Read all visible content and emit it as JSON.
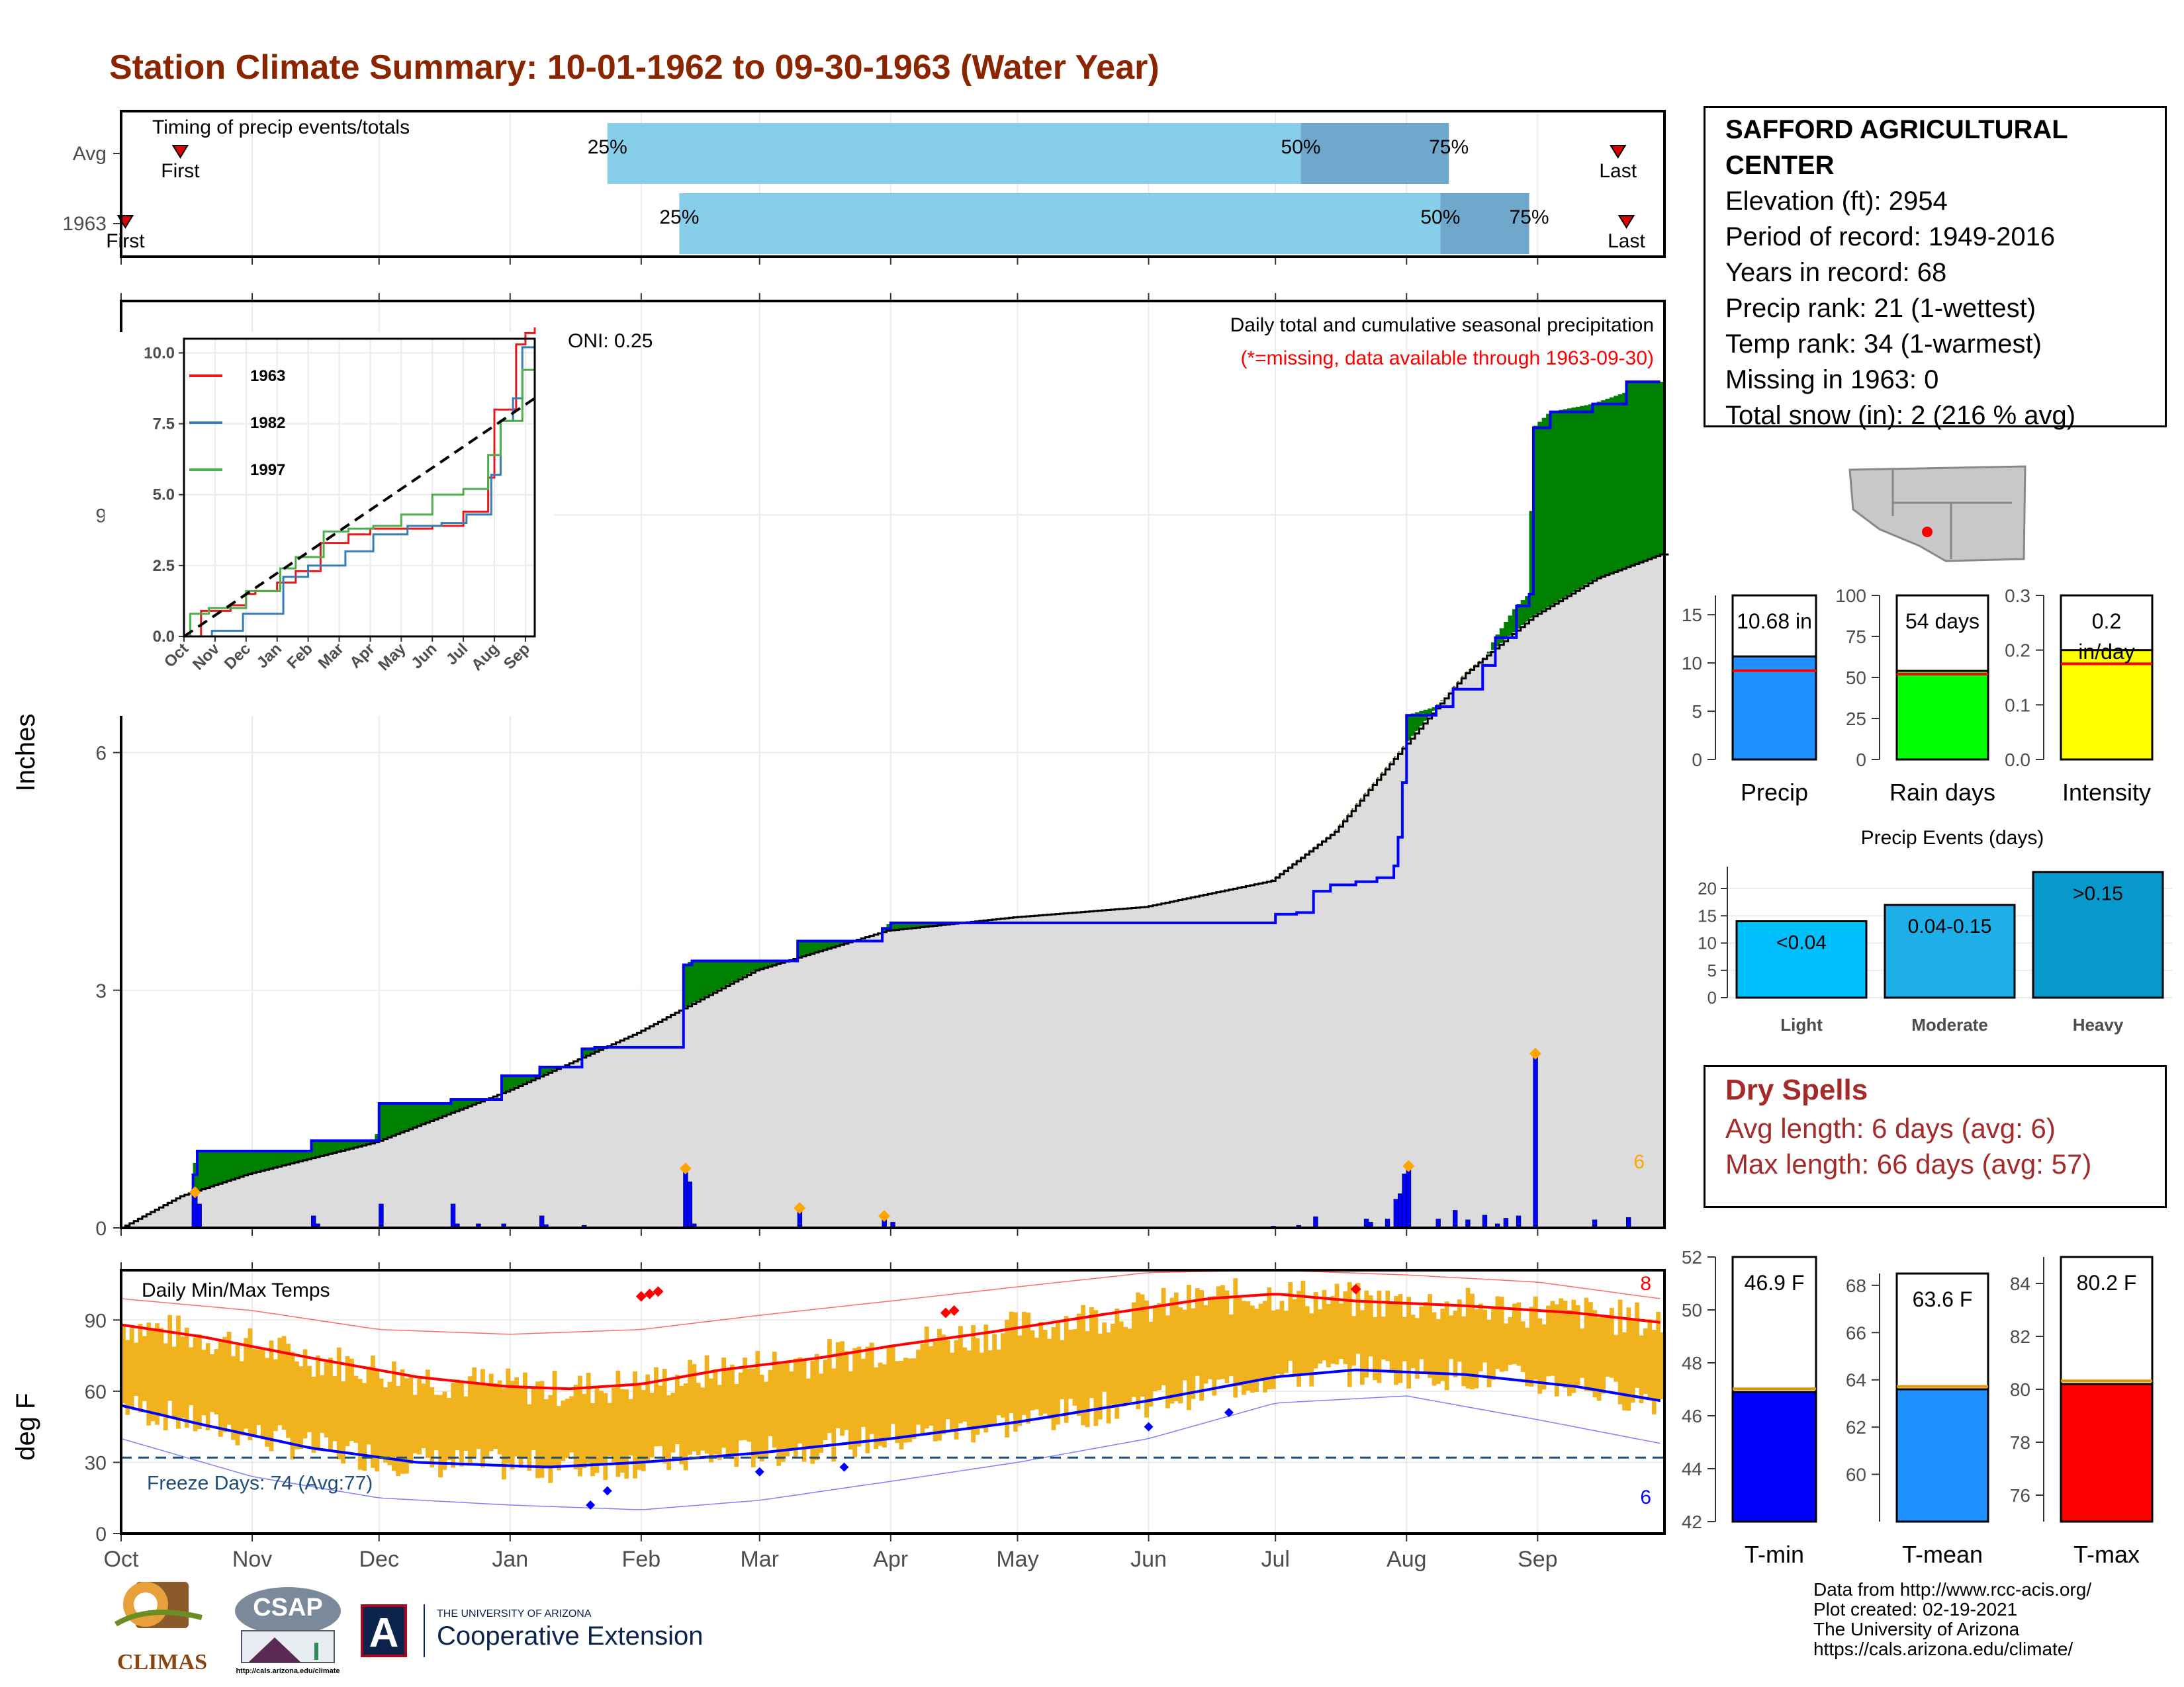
{
  "title": "Station Climate Summary: 10-01-1962 to 09-30-1963 (Water Year)",
  "station": {
    "name_line1": "SAFFORD AGRICULTURAL",
    "name_line2": "CENTER",
    "lines": [
      "Elevation (ft): 2954",
      "Period of record: 1949-2016",
      "Years in record: 68",
      "Precip rank: 21 (1-wettest)",
      "Temp rank: 34 (1-warmest)",
      "Missing in 1963: 0",
      "Total snow (in): 2 (216 % avg)"
    ]
  },
  "dry_spells": {
    "title": "Dry Spells",
    "avg": "Avg length: 6 days (avg: 6)",
    "max": "Max length: 66 days (avg: 57)"
  },
  "credits": [
    "Data from http://www.rcc-acis.org/",
    "Plot created: 02-19-2021",
    "The University of Arizona",
    "https://cals.arizona.edu/climate/"
  ],
  "logos": {
    "climas": "CLIMAS",
    "csap": "CSAP",
    "csap_url": "http://cals.arizona.edu/climate",
    "ua_letter": "A",
    "ua_small": "THE UNIVERSITY OF ARIZONA",
    "ua_big": "Cooperative Extension"
  },
  "colors": {
    "title": "#8b2500",
    "precip_fill": "#dcdcdc",
    "cum_line": "#0000ff",
    "above_avg": "#008000",
    "below_avg": "#7f5000",
    "temp_bar": "#f0b31e",
    "tmax_line": "#ff0000",
    "tmin_line": "#0000ff",
    "timing_light": "#87ceeb",
    "timing_dark": "#6fa8cc",
    "dry_spell": "#a52a2a"
  },
  "months": [
    "Oct",
    "Nov",
    "Dec",
    "Jan",
    "Feb",
    "Mar",
    "Apr",
    "May",
    "Jun",
    "Jul",
    "Aug",
    "Sep"
  ],
  "chart_data": [
    {
      "id": "timing",
      "type": "bar",
      "title": "Timing of precip events/totals",
      "rows": [
        {
          "label": "Avg",
          "first": "Oct 15",
          "p25": "Jan 24",
          "p50": "Jul 7",
          "p75": "Aug 11",
          "last": "Sep 20",
          "first_label": "First",
          "last_label": "Last"
        },
        {
          "label": "1963",
          "first": "Oct 2",
          "p25": "Feb 10",
          "p50": "Aug 9",
          "p75": "Aug 30",
          "last": "Sep 22",
          "first_label": "First",
          "last_label": "Last"
        }
      ],
      "pct_labels": [
        "25%",
        "50%",
        "75%"
      ]
    },
    {
      "id": "precip",
      "type": "area",
      "title": "Daily total and cumulative seasonal precipitation",
      "subtitle": "(*=missing, data available through 1963-09-30)",
      "annotation": "ONI: 0.25",
      "ylabel": "Inches",
      "ylim": [
        0,
        11.7
      ],
      "yticks": [
        0,
        3,
        6,
        9
      ],
      "events_count": "6",
      "cumulative_1963": [
        [
          "Oct 1",
          0
        ],
        [
          "Oct 18",
          0.0
        ],
        [
          "Oct 18",
          0.67
        ],
        [
          "Oct 19",
          0.97
        ],
        [
          "Nov 15",
          0.97
        ],
        [
          "Nov 15",
          1.1
        ],
        [
          "Nov 30",
          1.1
        ],
        [
          "Dec 1",
          1.27
        ],
        [
          "Dec 1",
          1.57
        ],
        [
          "Dec 18",
          1.57
        ],
        [
          "Dec 18",
          1.62
        ],
        [
          "Dec 30",
          1.62
        ],
        [
          "Dec 30",
          1.92
        ],
        [
          "Jan 8",
          1.92
        ],
        [
          "Jan 8",
          2.03
        ],
        [
          "Jan 17",
          2.03
        ],
        [
          "Jan 18",
          2.26
        ],
        [
          "Jan 21",
          2.28
        ],
        [
          "Feb 11",
          2.28
        ],
        [
          "Feb 11",
          3.32
        ],
        [
          "Feb 13",
          3.37
        ],
        [
          "Mar 10",
          3.37
        ],
        [
          "Mar 10",
          3.62
        ],
        [
          "Mar 30",
          3.62
        ],
        [
          "Mar 30",
          3.78
        ],
        [
          "Apr 1",
          3.85
        ],
        [
          "Jun 30",
          3.85
        ],
        [
          "Jul 1",
          3.96
        ],
        [
          "Jul 6",
          3.98
        ],
        [
          "Jul 10",
          4.25
        ],
        [
          "Jul 14",
          4.33
        ],
        [
          "Jul 20",
          4.37
        ],
        [
          "Jul 25",
          4.42
        ],
        [
          "Jul 29",
          4.57
        ],
        [
          "Jul 30",
          4.93
        ],
        [
          "Jul 31",
          5.62
        ],
        [
          "Aug 1",
          6.47
        ],
        [
          "Aug 8",
          6.58
        ],
        [
          "Aug 12",
          6.8
        ],
        [
          "Aug 19",
          7.1
        ],
        [
          "Aug 22",
          7.45
        ],
        [
          "Aug 27",
          7.85
        ],
        [
          "Aug 30",
          8.0
        ],
        [
          "Aug 31",
          10.1
        ],
        [
          "Sep 4",
          10.3
        ],
        [
          "Sep 14",
          10.4
        ],
        [
          "Sep 22",
          10.55
        ],
        [
          "Sep 22",
          10.68
        ],
        [
          "Sep 30",
          10.68
        ]
      ],
      "average": [
        [
          "Oct 1",
          0
        ],
        [
          "Oct 15",
          0.4
        ],
        [
          "Oct 31",
          0.68
        ],
        [
          "Nov 30",
          1.08
        ],
        [
          "Dec 31",
          1.72
        ],
        [
          "Jan 31",
          2.46
        ],
        [
          "Feb 28",
          3.25
        ],
        [
          "Mar 31",
          3.75
        ],
        [
          "Apr 30",
          3.92
        ],
        [
          "May 31",
          4.05
        ],
        [
          "Jun 30",
          4.38
        ],
        [
          "Jul 15",
          5.0
        ],
        [
          "Jul 31",
          6.05
        ],
        [
          "Aug 15",
          7.0
        ],
        [
          "Aug 31",
          7.72
        ],
        [
          "Sep 15",
          8.2
        ],
        [
          "Sep 30",
          8.5
        ]
      ],
      "daily_bars": [
        [
          "Oct 18",
          0.45
        ],
        [
          "Oct 19",
          0.3
        ],
        [
          "Nov 15",
          0.15
        ],
        [
          "Nov 16",
          0.05
        ],
        [
          "Dec 1",
          0.3
        ],
        [
          "Dec 18",
          0.3
        ],
        [
          "Dec 19",
          0.05
        ],
        [
          "Dec 24",
          0.05
        ],
        [
          "Dec 30",
          0.05
        ],
        [
          "Jan 8",
          0.15
        ],
        [
          "Jan 9",
          0.04
        ],
        [
          "Jan 18",
          0.03
        ],
        [
          "Feb 11",
          0.75
        ],
        [
          "Feb 12",
          0.58
        ],
        [
          "Feb 13",
          0.05
        ],
        [
          "Mar 10",
          0.25
        ],
        [
          "Mar 30",
          0.15
        ],
        [
          "Apr 1",
          0.07
        ],
        [
          "Jun 30",
          0.02
        ],
        [
          "Jul 6",
          0.03
        ],
        [
          "Jul 10",
          0.14
        ],
        [
          "Jul 22",
          0.11
        ],
        [
          "Jul 23",
          0.07
        ],
        [
          "Jul 27",
          0.11
        ],
        [
          "Jul 29",
          0.36
        ],
        [
          "Jul 30",
          0.43
        ],
        [
          "Jul 31",
          0.68
        ],
        [
          "Aug 1",
          0.78
        ],
        [
          "Aug 8",
          0.11
        ],
        [
          "Aug 12",
          0.22
        ],
        [
          "Aug 15",
          0.1
        ],
        [
          "Aug 19",
          0.16
        ],
        [
          "Aug 22",
          0.05
        ],
        [
          "Aug 24",
          0.12
        ],
        [
          "Aug 27",
          0.15
        ],
        [
          "Aug 31",
          2.2
        ],
        [
          "Sep 14",
          0.1
        ],
        [
          "Sep 22",
          0.13
        ]
      ],
      "event_markers": [
        "Oct 18",
        "Feb 11",
        "Mar 10",
        "Mar 30",
        "Aug 1",
        "Aug 31"
      ]
    },
    {
      "id": "precip_inset",
      "type": "line",
      "ylim": [
        0,
        10.5
      ],
      "yticks": [
        "0.0",
        "2.5",
        "5.0",
        "7.5",
        "10.0"
      ],
      "xticks": [
        "Oct",
        "Nov",
        "Dec",
        "Jan",
        "Feb",
        "Mar",
        "Apr",
        "May",
        "Jun",
        "Jul",
        "Aug",
        "Sep"
      ],
      "series": [
        {
          "name": "1963",
          "color": "#e41a1c",
          "points": [
            [
              0,
              0
            ],
            [
              0.55,
              0.9
            ],
            [
              1.5,
              1.1
            ],
            [
              2.0,
              1.5
            ],
            [
              2.3,
              1.6
            ],
            [
              3.0,
              1.9
            ],
            [
              3.6,
              2.3
            ],
            [
              4.4,
              3.3
            ],
            [
              5.3,
              3.6
            ],
            [
              6.0,
              3.8
            ],
            [
              8.0,
              3.9
            ],
            [
              9.0,
              4.4
            ],
            [
              9.8,
              5.6
            ],
            [
              10.0,
              8.0
            ],
            [
              10.7,
              10.3
            ],
            [
              11.0,
              10.7
            ],
            [
              11.3,
              10.9
            ]
          ]
        },
        {
          "name": "1982",
          "color": "#377eb8",
          "points": [
            [
              0,
              0
            ],
            [
              0.9,
              0.2
            ],
            [
              1.9,
              0.8
            ],
            [
              2.7,
              0.8
            ],
            [
              3.2,
              2.1
            ],
            [
              4.0,
              2.5
            ],
            [
              5.2,
              3.0
            ],
            [
              6.1,
              3.6
            ],
            [
              7.2,
              3.9
            ],
            [
              8.3,
              4.0
            ],
            [
              9.1,
              4.3
            ],
            [
              9.9,
              5.7
            ],
            [
              10.2,
              7.6
            ],
            [
              10.6,
              8.4
            ],
            [
              10.9,
              10.2
            ],
            [
              11.3,
              10.3
            ]
          ]
        },
        {
          "name": "1997",
          "color": "#4daf4a",
          "points": [
            [
              0,
              0
            ],
            [
              0.2,
              0.8
            ],
            [
              0.8,
              1.0
            ],
            [
              2.0,
              1.6
            ],
            [
              3.1,
              2.4
            ],
            [
              3.6,
              2.8
            ],
            [
              4.5,
              3.7
            ],
            [
              5.3,
              3.8
            ],
            [
              6.1,
              3.9
            ],
            [
              7.0,
              4.3
            ],
            [
              8.0,
              5.0
            ],
            [
              9.0,
              5.2
            ],
            [
              9.8,
              6.4
            ],
            [
              10.2,
              7.6
            ],
            [
              10.9,
              9.4
            ],
            [
              11.3,
              10.2
            ]
          ]
        }
      ],
      "average": [
        [
          0,
          0
        ],
        [
          11.3,
          8.4
        ]
      ]
    },
    {
      "id": "temps",
      "type": "bar",
      "title": "Daily Min/Max Temps",
      "ylabel": "deg F",
      "ylim": [
        0,
        111
      ],
      "yticks": [
        0,
        30,
        60,
        90
      ],
      "freeze_line": 32,
      "freeze_label": "Freeze Days: 74 (Avg:77)",
      "tmax_records": "8",
      "tmin_records": "6",
      "avg_tmax": [
        [
          "Oct 1",
          88
        ],
        [
          "Oct 20",
          83
        ],
        [
          "Nov 15",
          74
        ],
        [
          "Dec 10",
          66
        ],
        [
          "Dec 31",
          62
        ],
        [
          "Jan 15",
          61
        ],
        [
          "Feb 1",
          63
        ],
        [
          "Feb 20",
          69
        ],
        [
          "Mar 15",
          74
        ],
        [
          "Apr 1",
          79
        ],
        [
          "Apr 25",
          85
        ],
        [
          "May 20",
          92
        ],
        [
          "Jun 15",
          99
        ],
        [
          "Jul 1",
          101
        ],
        [
          "Jul 20",
          98
        ],
        [
          "Aug 15",
          96
        ],
        [
          "Sep 10",
          93
        ],
        [
          "Sep 30",
          89
        ]
      ],
      "avg_tmin": [
        [
          "Oct 1",
          54
        ],
        [
          "Oct 20",
          46
        ],
        [
          "Nov 15",
          36
        ],
        [
          "Dec 10",
          30
        ],
        [
          "Jan 10",
          28
        ],
        [
          "Feb 1",
          30
        ],
        [
          "Mar 1",
          34
        ],
        [
          "Apr 1",
          40
        ],
        [
          "May 1",
          47
        ],
        [
          "Jun 1",
          56
        ],
        [
          "Jul 1",
          66
        ],
        [
          "Jul 20",
          69
        ],
        [
          "Aug 15",
          67
        ],
        [
          "Sep 10",
          62
        ],
        [
          "Sep 30",
          56
        ]
      ],
      "rec_max": [
        [
          "Oct 1",
          99
        ],
        [
          "Nov 1",
          94
        ],
        [
          "Dec 1",
          86
        ],
        [
          "Jan 1",
          84
        ],
        [
          "Feb 1",
          86
        ],
        [
          "Mar 1",
          92
        ],
        [
          "Apr 1",
          98
        ],
        [
          "May 1",
          104
        ],
        [
          "Jun 1",
          110
        ],
        [
          "Jul 1",
          111
        ],
        [
          "Aug 1",
          109
        ],
        [
          "Sep 1",
          106
        ],
        [
          "Sep 30",
          99
        ]
      ],
      "rec_min": [
        [
          "Oct 1",
          40
        ],
        [
          "Nov 1",
          24
        ],
        [
          "Dec 1",
          15
        ],
        [
          "Jan 1",
          12
        ],
        [
          "Feb 1",
          10
        ],
        [
          "Mar 1",
          14
        ],
        [
          "Apr 1",
          22
        ],
        [
          "May 1",
          30
        ],
        [
          "Jun 1",
          40
        ],
        [
          "Jul 1",
          55
        ],
        [
          "Aug 1",
          58
        ],
        [
          "Sep 1",
          48
        ],
        [
          "Sep 30",
          38
        ]
      ]
    },
    {
      "id": "season_precip",
      "type": "bar",
      "categories": [
        "Precip",
        "Rain days",
        "Intensity"
      ],
      "values": [
        10.68,
        54,
        0.2
      ],
      "labels": [
        "10.68 in",
        "54 days",
        "0.2 in/day"
      ],
      "averages": [
        9.2,
        52,
        0.175
      ],
      "ylims": [
        [
          0,
          17
        ],
        [
          0,
          100
        ],
        [
          0,
          0.3
        ]
      ],
      "yticks": [
        [
          "0",
          "5",
          "10",
          "15"
        ],
        [
          "0",
          "25",
          "50",
          "75",
          "100"
        ],
        [
          "0.0",
          "0.1",
          "0.2",
          "0.3"
        ]
      ]
    },
    {
      "id": "precip_events",
      "type": "bar",
      "title": "Precip Events (days)",
      "categories": [
        "Light",
        "Moderate",
        "Heavy"
      ],
      "labels": [
        "<0.04",
        "0.04-0.15",
        ">0.15"
      ],
      "values": [
        14,
        17,
        23
      ],
      "ylim": [
        0,
        24
      ],
      "yticks": [
        "0",
        "5",
        "10",
        "15",
        "20"
      ]
    },
    {
      "id": "season_temps",
      "type": "bar",
      "categories": [
        "T-min",
        "T-mean",
        "T-max"
      ],
      "values": [
        46.9,
        63.6,
        80.2
      ],
      "labels": [
        "46.9 F",
        "63.6 F",
        "80.2 F"
      ],
      "ylims": [
        [
          42,
          52
        ],
        [
          58,
          68.5
        ],
        [
          75,
          85
        ]
      ],
      "yticks": [
        [
          "42",
          "44",
          "46",
          "48",
          "50",
          "52"
        ],
        [
          "60",
          "62",
          "64",
          "66",
          "68"
        ],
        [
          "76",
          "78",
          "80",
          "82",
          "84"
        ]
      ]
    }
  ]
}
